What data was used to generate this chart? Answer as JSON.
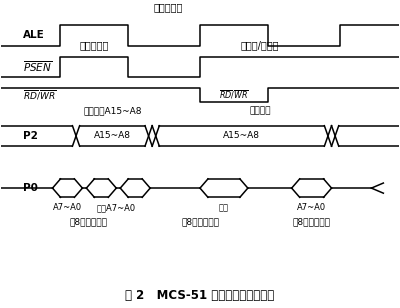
{
  "title": "图 2   MCS-51 系列单片机的时序图",
  "bg_color": "#ffffff",
  "ale_label_top": "地址锁存沿",
  "psen_label": "指令读允许",
  "rdwr_label_ext": "外部读/写允许",
  "p2_label_top1": "指令地址A15~A8",
  "p2_label_top2": "数据地址",
  "p2_seg1": "A15~A8",
  "p2_seg2": "A15~A8",
  "p0_bot1": "A7~A0",
  "p0_bot2": "指令A7~A0",
  "p0_bot3": "数据",
  "p0_bot4": "A7~A0",
  "p0_row2_1": "低8位指令地址",
  "p0_row2_2": "低8位数据地址",
  "p0_row2_3": "低8位数据地址"
}
